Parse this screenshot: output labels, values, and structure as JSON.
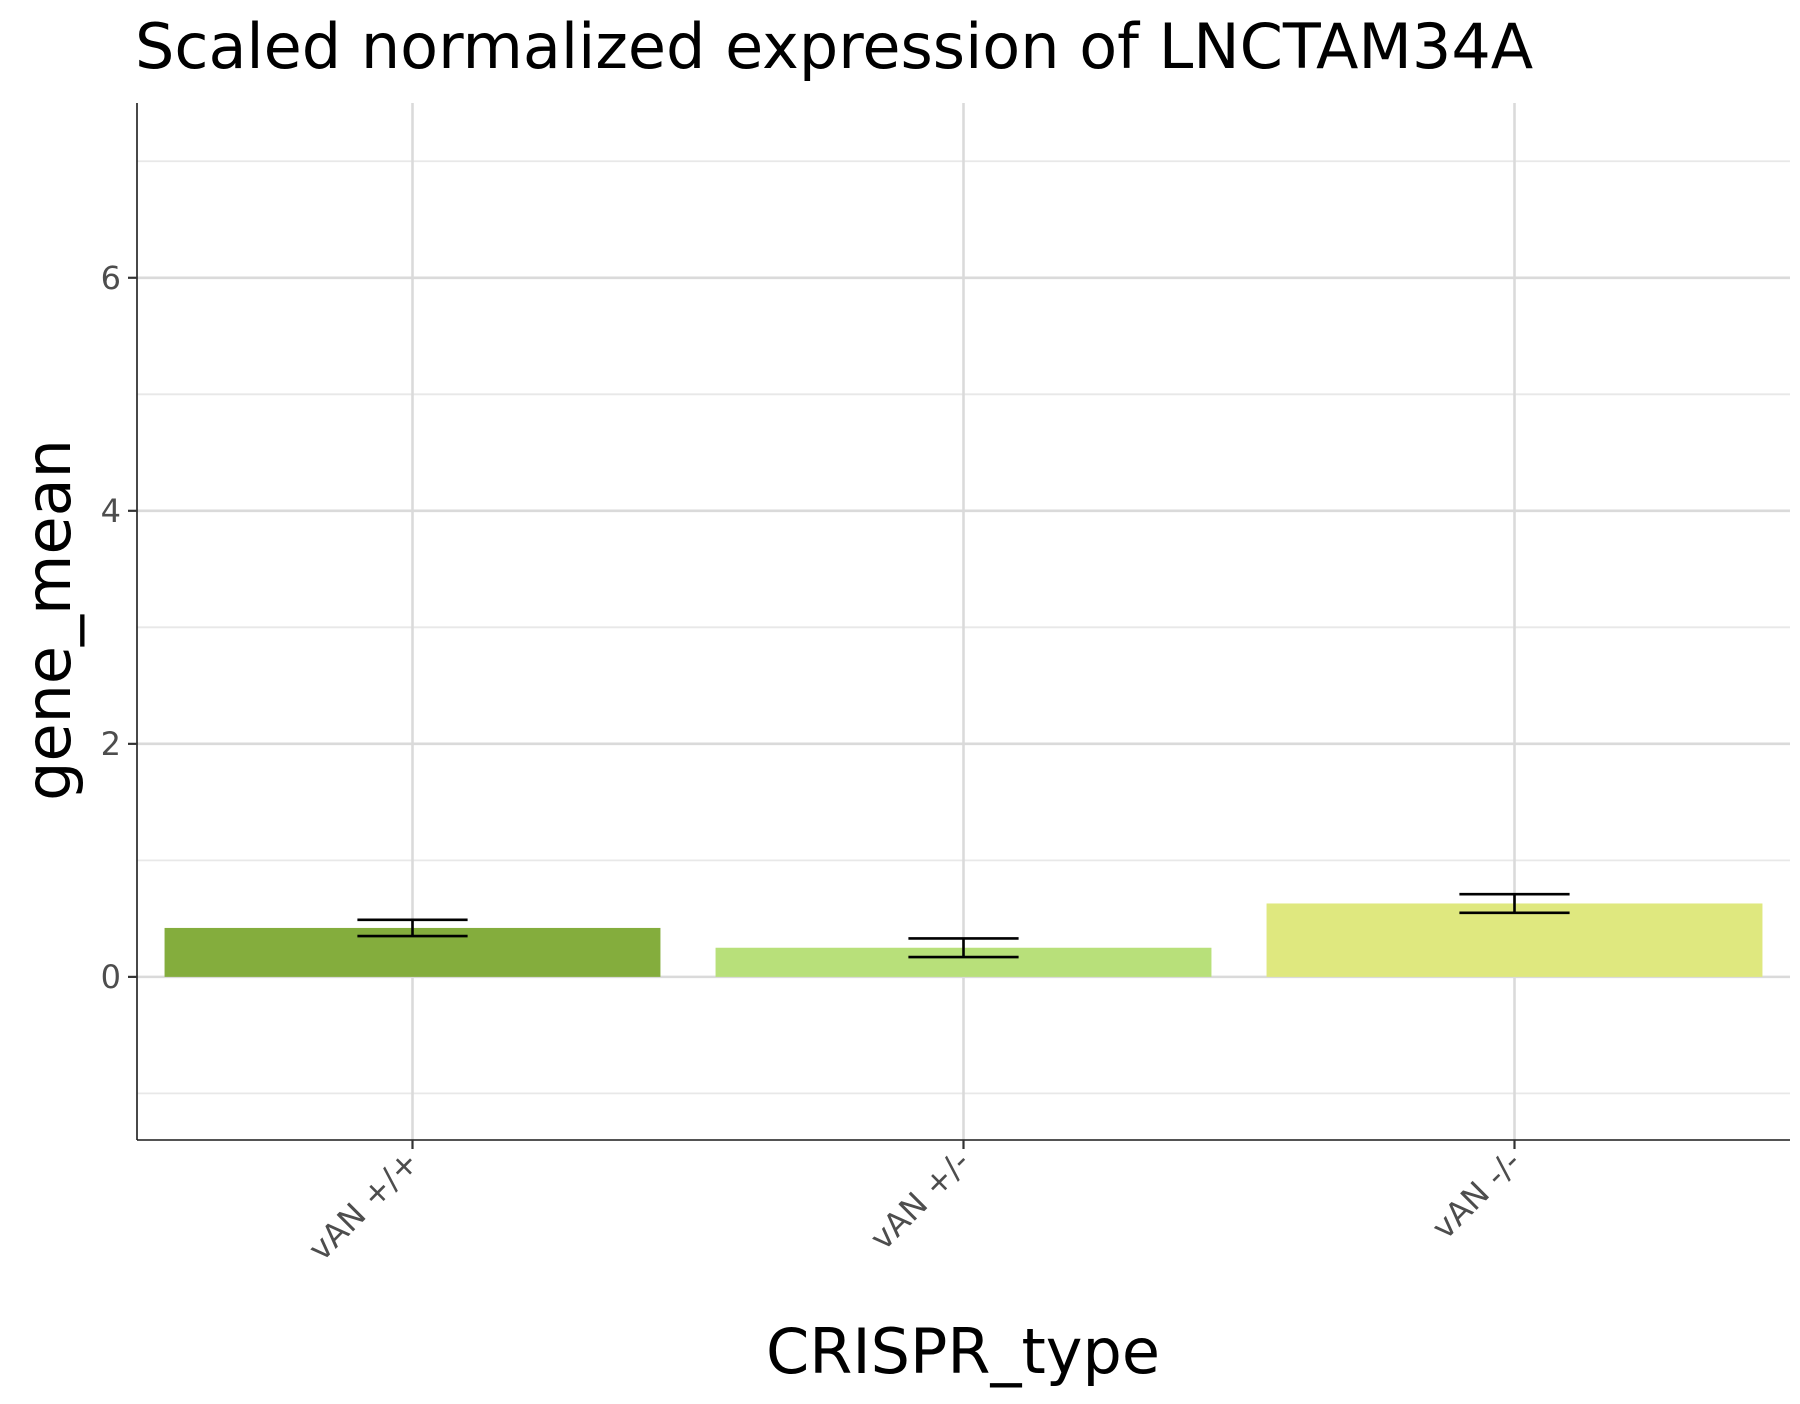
{
  "chart_data": {
    "type": "bar",
    "title": "Scaled normalized expression of LNCTAM34A",
    "xlabel": "CRISPR_type",
    "ylabel": "gene_mean",
    "categories": [
      "vAN +/+",
      "vAN +/-",
      "vAN -/-"
    ],
    "values": [
      0.42,
      0.25,
      0.63
    ],
    "error_low": [
      0.35,
      0.17,
      0.55
    ],
    "error_high": [
      0.49,
      0.33,
      0.71
    ],
    "colors": [
      "#84ad3d",
      "#b8e07a",
      "#dfe87f"
    ],
    "ylim": [
      -1.4,
      7.5
    ],
    "yticks": [
      0,
      2,
      4,
      6
    ],
    "yticks_minor": [
      -1,
      1,
      3,
      5,
      7
    ],
    "grid": true,
    "legend": "none"
  }
}
